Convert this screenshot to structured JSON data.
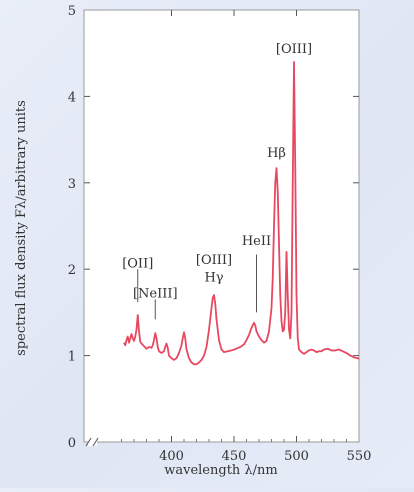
{
  "chart_data": {
    "type": "line",
    "title": "",
    "xlabel": "wavelength λ/nm",
    "ylabel": "spectral flux density Fλ/arbitrary units",
    "xlim": [
      330,
      550
    ],
    "ylim": [
      0,
      5
    ],
    "x_ticks": [
      "400",
      "450",
      "500",
      "550"
    ],
    "y_ticks": [
      "0",
      "1",
      "2",
      "3",
      "4",
      "5"
    ],
    "axis_break": true,
    "grid": false,
    "series": [
      {
        "line_color": "#e8485f",
        "points": [
          [
            362,
            1.15
          ],
          [
            363,
            1.12
          ],
          [
            364,
            1.18
          ],
          [
            365,
            1.22
          ],
          [
            366,
            1.15
          ],
          [
            367,
            1.2
          ],
          [
            368,
            1.25
          ],
          [
            369,
            1.2
          ],
          [
            370,
            1.17
          ],
          [
            371,
            1.22
          ],
          [
            372,
            1.3
          ],
          [
            373,
            1.47
          ],
          [
            374,
            1.28
          ],
          [
            375,
            1.16
          ],
          [
            376,
            1.14
          ],
          [
            378,
            1.11
          ],
          [
            380,
            1.08
          ],
          [
            382,
            1.1
          ],
          [
            384,
            1.09
          ],
          [
            385,
            1.12
          ],
          [
            386,
            1.18
          ],
          [
            387,
            1.26
          ],
          [
            388,
            1.2
          ],
          [
            389,
            1.1
          ],
          [
            390,
            1.05
          ],
          [
            392,
            1.03
          ],
          [
            394,
            1.05
          ],
          [
            395,
            1.1
          ],
          [
            396,
            1.14
          ],
          [
            397,
            1.09
          ],
          [
            398,
            1.0
          ],
          [
            400,
            0.97
          ],
          [
            402,
            0.95
          ],
          [
            404,
            0.97
          ],
          [
            406,
            1.03
          ],
          [
            408,
            1.12
          ],
          [
            409,
            1.2
          ],
          [
            410,
            1.27
          ],
          [
            411,
            1.2
          ],
          [
            412,
            1.07
          ],
          [
            414,
            0.97
          ],
          [
            416,
            0.92
          ],
          [
            418,
            0.9
          ],
          [
            420,
            0.9
          ],
          [
            422,
            0.92
          ],
          [
            424,
            0.95
          ],
          [
            426,
            1.0
          ],
          [
            428,
            1.1
          ],
          [
            430,
            1.3
          ],
          [
            432,
            1.55
          ],
          [
            433,
            1.67
          ],
          [
            434,
            1.7
          ],
          [
            435,
            1.6
          ],
          [
            436,
            1.42
          ],
          [
            438,
            1.18
          ],
          [
            440,
            1.07
          ],
          [
            442,
            1.04
          ],
          [
            445,
            1.05
          ],
          [
            448,
            1.06
          ],
          [
            450,
            1.07
          ],
          [
            452,
            1.08
          ],
          [
            455,
            1.1
          ],
          [
            458,
            1.13
          ],
          [
            460,
            1.18
          ],
          [
            462,
            1.24
          ],
          [
            464,
            1.32
          ],
          [
            466,
            1.38
          ],
          [
            467,
            1.35
          ],
          [
            468,
            1.28
          ],
          [
            470,
            1.22
          ],
          [
            472,
            1.18
          ],
          [
            474,
            1.15
          ],
          [
            476,
            1.17
          ],
          [
            478,
            1.28
          ],
          [
            480,
            1.55
          ],
          [
            481,
            1.9
          ],
          [
            482,
            2.5
          ],
          [
            483,
            3.0
          ],
          [
            484,
            3.17
          ],
          [
            485,
            2.9
          ],
          [
            486,
            2.3
          ],
          [
            487,
            1.7
          ],
          [
            488,
            1.4
          ],
          [
            489,
            1.28
          ],
          [
            490,
            1.3
          ],
          [
            491,
            1.5
          ],
          [
            492,
            2.2
          ],
          [
            493,
            1.7
          ],
          [
            494,
            1.3
          ],
          [
            495,
            1.2
          ],
          [
            496,
            1.5
          ],
          [
            497,
            3.0
          ],
          [
            498,
            4.4
          ],
          [
            499,
            3.2
          ],
          [
            500,
            1.7
          ],
          [
            501,
            1.2
          ],
          [
            502,
            1.07
          ],
          [
            504,
            1.04
          ],
          [
            506,
            1.02
          ],
          [
            508,
            1.04
          ],
          [
            510,
            1.06
          ],
          [
            512,
            1.07
          ],
          [
            514,
            1.06
          ],
          [
            516,
            1.04
          ],
          [
            518,
            1.05
          ],
          [
            520,
            1.05
          ],
          [
            522,
            1.07
          ],
          [
            525,
            1.08
          ],
          [
            528,
            1.06
          ],
          [
            531,
            1.06
          ],
          [
            534,
            1.07
          ],
          [
            537,
            1.05
          ],
          [
            540,
            1.03
          ],
          [
            543,
            1.0
          ],
          [
            546,
            0.98
          ],
          [
            549,
            0.97
          ],
          [
            550,
            0.96
          ]
        ]
      }
    ],
    "annotations": [
      {
        "text": "[OII]",
        "x": 373,
        "line_from": 1.62,
        "line_to": 2.0,
        "label_y": 2.02
      },
      {
        "text": "[NeIII]",
        "x": 387,
        "line_from": 1.42,
        "line_to": 1.65,
        "label_y": 1.67
      },
      {
        "text": "[OIII]",
        "x": 434,
        "label_y": 2.06
      },
      {
        "text": "Hγ",
        "x": 434,
        "label_y": 1.86
      },
      {
        "text": "HeII",
        "x": 468,
        "line_from": 1.5,
        "line_to": 2.17,
        "label_y": 2.28
      },
      {
        "text": "Hβ",
        "x": 484,
        "label_y": 3.3
      },
      {
        "text": "[OIII]",
        "x": 498,
        "label_y": 4.5
      }
    ]
  }
}
